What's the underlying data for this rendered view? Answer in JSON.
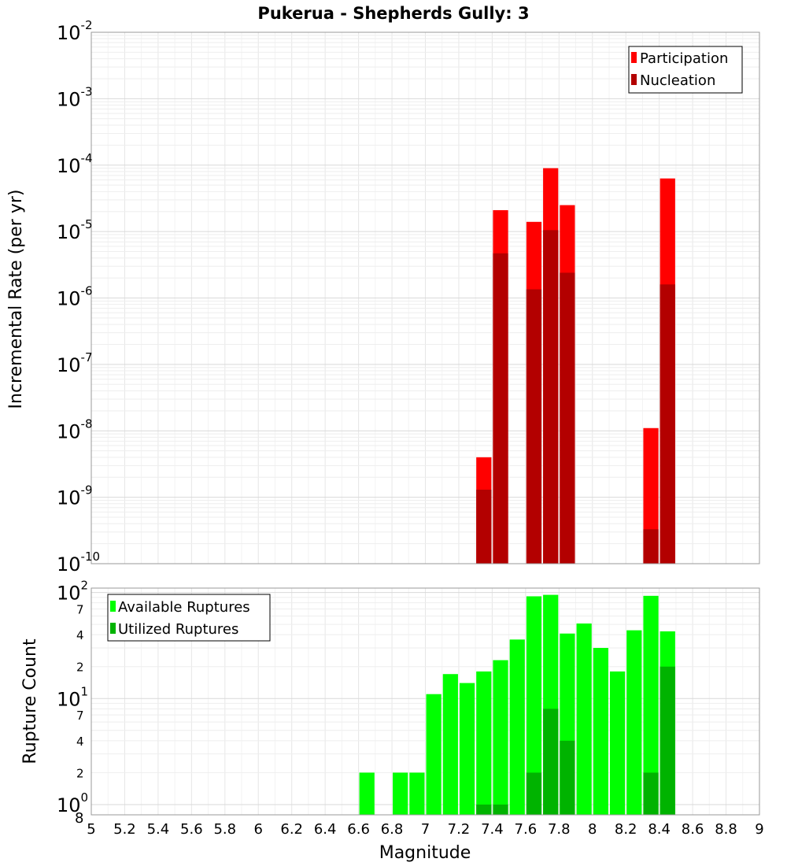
{
  "chart_data": [
    {
      "type": "bar",
      "title": "Pukerua - Shepherds Gully: 3",
      "xlabel": "Magnitude",
      "ylabel": "Incremental Rate (per yr)",
      "yscale": "log",
      "ylim": [
        1e-10,
        0.01
      ],
      "xlim": [
        5,
        9
      ],
      "bin_width": 0.1,
      "y_tick_labels": [
        {
          "base": "10",
          "exp": "-10"
        },
        {
          "base": "10",
          "exp": "-9"
        },
        {
          "base": "10",
          "exp": "-8"
        },
        {
          "base": "10",
          "exp": "-7"
        },
        {
          "base": "10",
          "exp": "-6"
        },
        {
          "base": "10",
          "exp": "-5"
        },
        {
          "base": "10",
          "exp": "-4"
        },
        {
          "base": "10",
          "exp": "-3"
        },
        {
          "base": "10",
          "exp": "-2"
        }
      ],
      "legend_position": "top-right",
      "series": [
        {
          "name": "Participation",
          "color": "#ff0000",
          "points": [
            {
              "x": 7.35,
              "y": 4e-09
            },
            {
              "x": 7.45,
              "y": 2.1e-05
            },
            {
              "x": 7.65,
              "y": 1.4e-05
            },
            {
              "x": 7.75,
              "y": 9e-05
            },
            {
              "x": 7.85,
              "y": 2.5e-05
            },
            {
              "x": 8.35,
              "y": 1.1e-08
            },
            {
              "x": 8.45,
              "y": 6.3e-05
            }
          ]
        },
        {
          "name": "Nucleation",
          "color": "#b30000",
          "points": [
            {
              "x": 7.35,
              "y": 1.3e-09
            },
            {
              "x": 7.45,
              "y": 4.7e-06
            },
            {
              "x": 7.65,
              "y": 1.35e-06
            },
            {
              "x": 7.75,
              "y": 1.05e-05
            },
            {
              "x": 7.85,
              "y": 2.4e-06
            },
            {
              "x": 8.35,
              "y": 3.3e-10
            },
            {
              "x": 8.45,
              "y": 1.6e-06
            }
          ]
        }
      ]
    },
    {
      "type": "bar",
      "xlabel": "Magnitude",
      "ylabel": "Rupture Count",
      "yscale": "log",
      "ylim": [
        0.8,
        110
      ],
      "xlim": [
        5,
        9
      ],
      "bin_width": 0.1,
      "x_ticks": [
        "5",
        "5.2",
        "5.4",
        "5.6",
        "5.8",
        "6",
        "6.2",
        "6.4",
        "6.6",
        "6.8",
        "7",
        "7.2",
        "7.4",
        "7.6",
        "7.8",
        "8",
        "8.2",
        "8.4",
        "8.6",
        "8.8",
        "9"
      ],
      "y_major_ticks": [
        {
          "base": "10",
          "exp": "0"
        },
        {
          "base": "10",
          "exp": "1"
        },
        {
          "base": "10",
          "exp": "2"
        }
      ],
      "y_minor_ticks": [
        {
          "value": 2,
          "label": "2"
        },
        {
          "value": 4,
          "label": "4"
        },
        {
          "value": 7,
          "label": "7"
        },
        {
          "value": 20,
          "label": "2"
        },
        {
          "value": 40,
          "label": "4"
        },
        {
          "value": 70,
          "label": "7"
        }
      ],
      "y_stray_label": "8",
      "legend_position": "top-left",
      "series": [
        {
          "name": "Available Ruptures",
          "color": "#00ff00",
          "points": [
            {
              "x": 6.65,
              "y": 2
            },
            {
              "x": 6.85,
              "y": 2
            },
            {
              "x": 6.95,
              "y": 2
            },
            {
              "x": 7.05,
              "y": 11
            },
            {
              "x": 7.15,
              "y": 17
            },
            {
              "x": 7.25,
              "y": 14
            },
            {
              "x": 7.35,
              "y": 18
            },
            {
              "x": 7.45,
              "y": 23
            },
            {
              "x": 7.55,
              "y": 36
            },
            {
              "x": 7.65,
              "y": 92
            },
            {
              "x": 7.75,
              "y": 95
            },
            {
              "x": 7.85,
              "y": 41
            },
            {
              "x": 7.95,
              "y": 51
            },
            {
              "x": 8.05,
              "y": 30
            },
            {
              "x": 8.15,
              "y": 18
            },
            {
              "x": 8.25,
              "y": 44
            },
            {
              "x": 8.35,
              "y": 93
            },
            {
              "x": 8.45,
              "y": 43
            }
          ]
        },
        {
          "name": "Utilized Ruptures",
          "color": "#00b300",
          "points": [
            {
              "x": 7.35,
              "y": 1
            },
            {
              "x": 7.45,
              "y": 1
            },
            {
              "x": 7.65,
              "y": 2
            },
            {
              "x": 7.75,
              "y": 8
            },
            {
              "x": 7.85,
              "y": 4
            },
            {
              "x": 8.35,
              "y": 2
            },
            {
              "x": 8.45,
              "y": 20
            }
          ]
        }
      ]
    }
  ]
}
